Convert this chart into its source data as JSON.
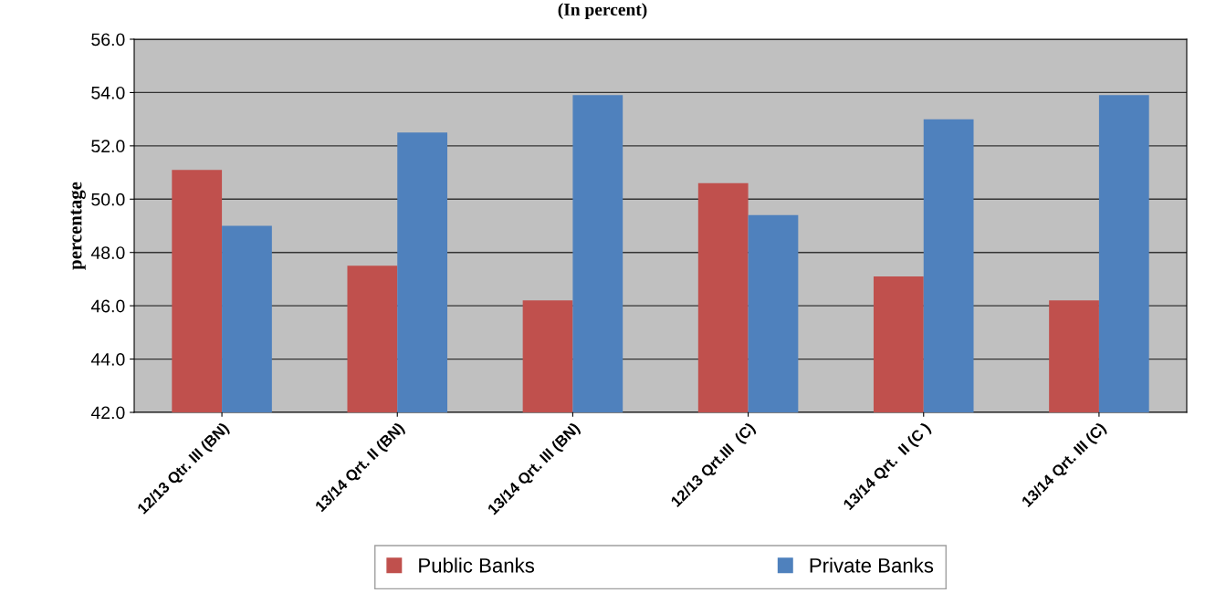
{
  "chart_data": {
    "type": "bar",
    "title": "(In percent)",
    "ylabel": "percentage",
    "categories": [
      "12/13 Qtr. III (BN)",
      "13/14 Qrt. II (BN)",
      "13/14 Qrt. III (BN)",
      "12/13 Qrt.III  (C)",
      "13/14 Qrt.  II (C )",
      "13/14 Qrt. III (C)"
    ],
    "series": [
      {
        "name": "Public Banks",
        "color": "#c0504d",
        "values": [
          51.1,
          47.5,
          46.2,
          50.6,
          47.1,
          46.2
        ]
      },
      {
        "name": "Private Banks",
        "color": "#4f81bd",
        "values": [
          49.0,
          52.5,
          53.9,
          49.4,
          53.0,
          53.9
        ]
      }
    ],
    "ylim": [
      42,
      56
    ],
    "yticks": [
      {
        "value": 42,
        "label": "42.0"
      },
      {
        "value": 44,
        "label": "44.0"
      },
      {
        "value": 46,
        "label": "46.0"
      },
      {
        "value": 48,
        "label": "48.0"
      },
      {
        "value": 50,
        "label": "50.0"
      },
      {
        "value": 52,
        "label": "52.0"
      },
      {
        "value": 54,
        "label": "54.0"
      },
      {
        "value": 56,
        "label": "56.0"
      }
    ],
    "grid": "y",
    "legend": "bottom"
  }
}
